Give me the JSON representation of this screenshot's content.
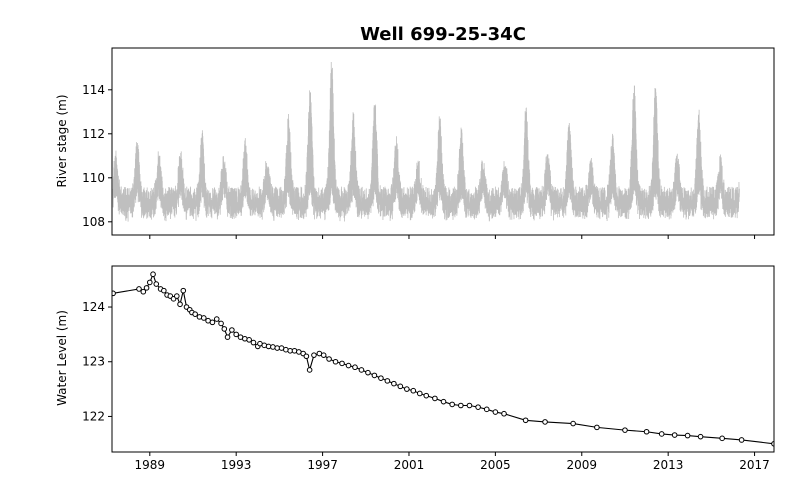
{
  "chart_data": {
    "title": "Well 699-25-34C",
    "shared_x": {
      "range": [
        1987.25,
        2017.9
      ],
      "ticks": [
        1989,
        1993,
        1997,
        2001,
        2005,
        2009,
        2013,
        2017
      ]
    },
    "panels": [
      {
        "type": "line",
        "ylabel": "River stage (m)",
        "ylim": [
          107.4,
          115.9
        ],
        "yticks": [
          108,
          110,
          112,
          114
        ],
        "show_x_tick_labels": false,
        "series": [
          {
            "color": "#bfbfbf",
            "description": "daily river stage, oscillating roughly between 108 and 111 m with seasonal peaks",
            "x_range": [
              1987.3,
              2016.3
            ],
            "peaks": [
              [
                1987.5,
                111.3
              ],
              [
                1988.35,
                111.8
              ],
              [
                1989.4,
                111.3
              ],
              [
                1990.4,
                111.4
              ],
              [
                1991.4,
                112.3
              ],
              [
                1992.4,
                111.2
              ],
              [
                1993.4,
                111.9
              ],
              [
                1994.4,
                111.0
              ],
              [
                1995.4,
                112.9
              ],
              [
                1996.4,
                114.2
              ],
              [
                1997.4,
                115.6
              ],
              [
                1998.4,
                113.0
              ],
              [
                1999.4,
                113.8
              ],
              [
                2000.4,
                112.0
              ],
              [
                2001.4,
                110.9
              ],
              [
                2002.4,
                113.0
              ],
              [
                2003.4,
                112.5
              ],
              [
                2004.4,
                110.9
              ],
              [
                2005.4,
                111.1
              ],
              [
                2006.4,
                113.5
              ],
              [
                2007.4,
                111.4
              ],
              [
                2008.4,
                113.0
              ],
              [
                2009.4,
                110.9
              ],
              [
                2010.4,
                112.0
              ],
              [
                2011.4,
                114.4
              ],
              [
                2012.4,
                114.6
              ],
              [
                2013.4,
                111.1
              ],
              [
                2014.4,
                113.5
              ],
              [
                2015.4,
                111.1
              ],
              [
                2016.1,
                111.0
              ]
            ]
          }
        ]
      },
      {
        "type": "line",
        "ylabel": "Water Level (m)",
        "ylim": [
          121.35,
          124.75
        ],
        "yticks": [
          122,
          123,
          124
        ],
        "show_x_tick_labels": true,
        "series": [
          {
            "color": "#000000",
            "marker": "circle",
            "x": [
              1987.3,
              1988.5,
              1988.7,
              1988.85,
              1989.0,
              1989.15,
              1989.3,
              1989.5,
              1989.65,
              1989.8,
              1989.95,
              1990.1,
              1990.25,
              1990.4,
              1990.55,
              1990.7,
              1990.85,
              1990.95,
              1991.1,
              1991.3,
              1991.5,
              1991.7,
              1991.9,
              1992.1,
              1992.3,
              1992.45,
              1992.6,
              1992.8,
              1993.0,
              1993.2,
              1993.4,
              1993.6,
              1993.8,
              1994.0,
              1994.1,
              1994.3,
              1994.5,
              1994.7,
              1994.9,
              1995.1,
              1995.3,
              1995.5,
              1995.7,
              1995.9,
              1996.1,
              1996.25,
              1996.4,
              1996.6,
              1996.85,
              1997.05,
              1997.3,
              1997.6,
              1997.9,
              1998.2,
              1998.5,
              1998.8,
              1999.1,
              1999.4,
              1999.7,
              2000.0,
              2000.3,
              2000.6,
              2000.9,
              2001.2,
              2001.5,
              2001.8,
              2002.2,
              2002.6,
              2003.0,
              2003.4,
              2003.8,
              2004.2,
              2004.6,
              2005.0,
              2005.4,
              2006.4,
              2007.3,
              2008.6,
              2009.7,
              2011.0,
              2012.0,
              2012.7,
              2013.3,
              2013.9,
              2014.5,
              2015.5,
              2016.4,
              2017.9
            ],
            "y": [
              124.25,
              124.33,
              124.28,
              124.35,
              124.45,
              124.6,
              124.42,
              124.33,
              124.3,
              124.22,
              124.2,
              124.15,
              124.2,
              124.05,
              124.3,
              124.0,
              123.95,
              123.9,
              123.87,
              123.82,
              123.8,
              123.75,
              123.72,
              123.78,
              123.7,
              123.6,
              123.45,
              123.58,
              123.5,
              123.45,
              123.42,
              123.4,
              123.35,
              123.28,
              123.33,
              123.3,
              123.28,
              123.27,
              123.25,
              123.25,
              123.22,
              123.2,
              123.2,
              123.18,
              123.15,
              123.1,
              122.85,
              123.12,
              123.15,
              123.12,
              123.05,
              123.0,
              122.97,
              122.93,
              122.9,
              122.85,
              122.8,
              122.75,
              122.7,
              122.65,
              122.6,
              122.55,
              122.5,
              122.47,
              122.42,
              122.38,
              122.33,
              122.27,
              122.22,
              122.2,
              122.2,
              122.17,
              122.13,
              122.08,
              122.05,
              121.93,
              121.9,
              121.87,
              121.8,
              121.75,
              121.72,
              121.68,
              121.66,
              121.65,
              121.63,
              121.6,
              121.57,
              121.5
            ]
          }
        ]
      }
    ]
  }
}
